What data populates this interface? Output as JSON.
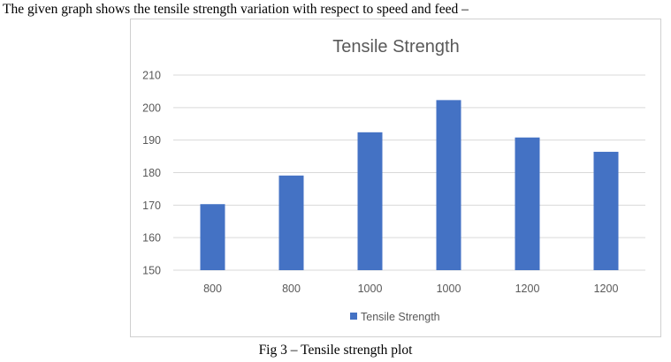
{
  "intro_text": "The given graph shows the tensile strength variation with respect to speed and feed –",
  "caption": "Fig 3 – Tensile strength plot",
  "chart_data": {
    "type": "bar",
    "title": "Tensile Strength",
    "categories": [
      "800",
      "800",
      "1000",
      "1000",
      "1200",
      "1200"
    ],
    "series": [
      {
        "name": "Tensile Strength",
        "values": [
          170.3,
          179.1,
          192.4,
          202.3,
          190.8,
          186.4
        ],
        "color": "#4472C4"
      }
    ],
    "xlabel": "",
    "ylabel": "",
    "ylim": [
      150,
      210
    ],
    "yticks": [
      "150",
      "160",
      "170",
      "180",
      "190",
      "200",
      "210"
    ],
    "grid": true,
    "legend": "bottom",
    "gridColor": "#d9d9d9"
  }
}
